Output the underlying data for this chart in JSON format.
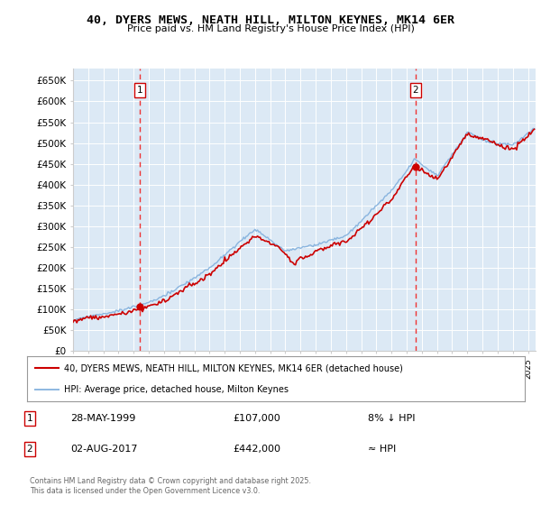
{
  "title": "40, DYERS MEWS, NEATH HILL, MILTON KEYNES, MK14 6ER",
  "subtitle": "Price paid vs. HM Land Registry's House Price Index (HPI)",
  "ylim": [
    0,
    680000
  ],
  "yticks": [
    0,
    50000,
    100000,
    150000,
    200000,
    250000,
    300000,
    350000,
    400000,
    450000,
    500000,
    550000,
    600000,
    650000
  ],
  "ytick_labels": [
    "£0",
    "£50K",
    "£100K",
    "£150K",
    "£200K",
    "£250K",
    "£300K",
    "£350K",
    "£400K",
    "£450K",
    "£500K",
    "£550K",
    "£600K",
    "£650K"
  ],
  "background_color": "#dce9f5",
  "fig_bg_color": "#ffffff",
  "grid_color": "#ffffff",
  "sale1_date_num": 1999.41,
  "sale1_price": 107000,
  "sale1_label": "1",
  "sale1_date_str": "28-MAY-1999",
  "sale1_amount_str": "£107,000",
  "sale1_hpi_str": "8% ↓ HPI",
  "sale2_date_num": 2017.58,
  "sale2_price": 442000,
  "sale2_label": "2",
  "sale2_date_str": "02-AUG-2017",
  "sale2_amount_str": "£442,000",
  "sale2_hpi_str": "≈ HPI",
  "line1_color": "#cc0000",
  "line2_color": "#7aabdb",
  "vline_color": "#ee3333",
  "marker_box_color": "#cc0000",
  "legend_label1": "40, DYERS MEWS, NEATH HILL, MILTON KEYNES, MK14 6ER (detached house)",
  "legend_label2": "HPI: Average price, detached house, Milton Keynes",
  "footer": "Contains HM Land Registry data © Crown copyright and database right 2025.\nThis data is licensed under the Open Government Licence v3.0.",
  "xstart": 1995.0,
  "xend": 2025.5
}
